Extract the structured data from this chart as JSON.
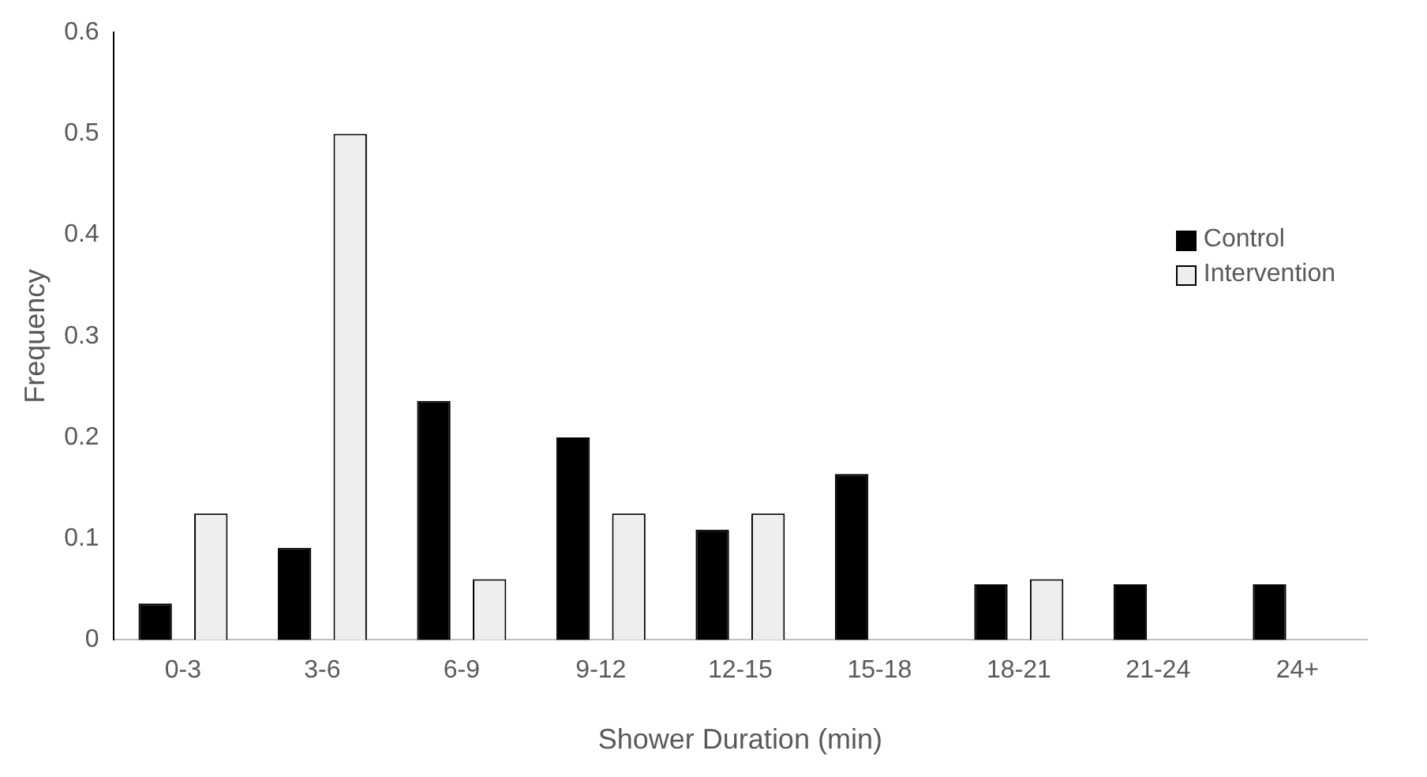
{
  "chart_data": {
    "type": "bar",
    "xlabel": "Shower Duration (min)",
    "ylabel": "Frequency",
    "categories": [
      "0-3",
      "3-6",
      "6-9",
      "9-12",
      "12-15",
      "15-18",
      "18-21",
      "21-24",
      "24+"
    ],
    "series": [
      {
        "name": "Control",
        "color": "#000000",
        "values": [
          0.036,
          0.091,
          0.236,
          0.2,
          0.109,
          0.164,
          0.055,
          0.055,
          0.055
        ]
      },
      {
        "name": "Intervention",
        "color": "#eeeeee",
        "values": [
          0.125,
          0.5,
          0.06,
          0.125,
          0.125,
          0,
          0.06,
          0,
          0
        ]
      }
    ],
    "ylim": [
      0,
      0.6
    ],
    "yticks": [
      0,
      0.1,
      0.2,
      0.3,
      0.4,
      0.5,
      0.6
    ],
    "grid": false,
    "legend": "top right"
  }
}
